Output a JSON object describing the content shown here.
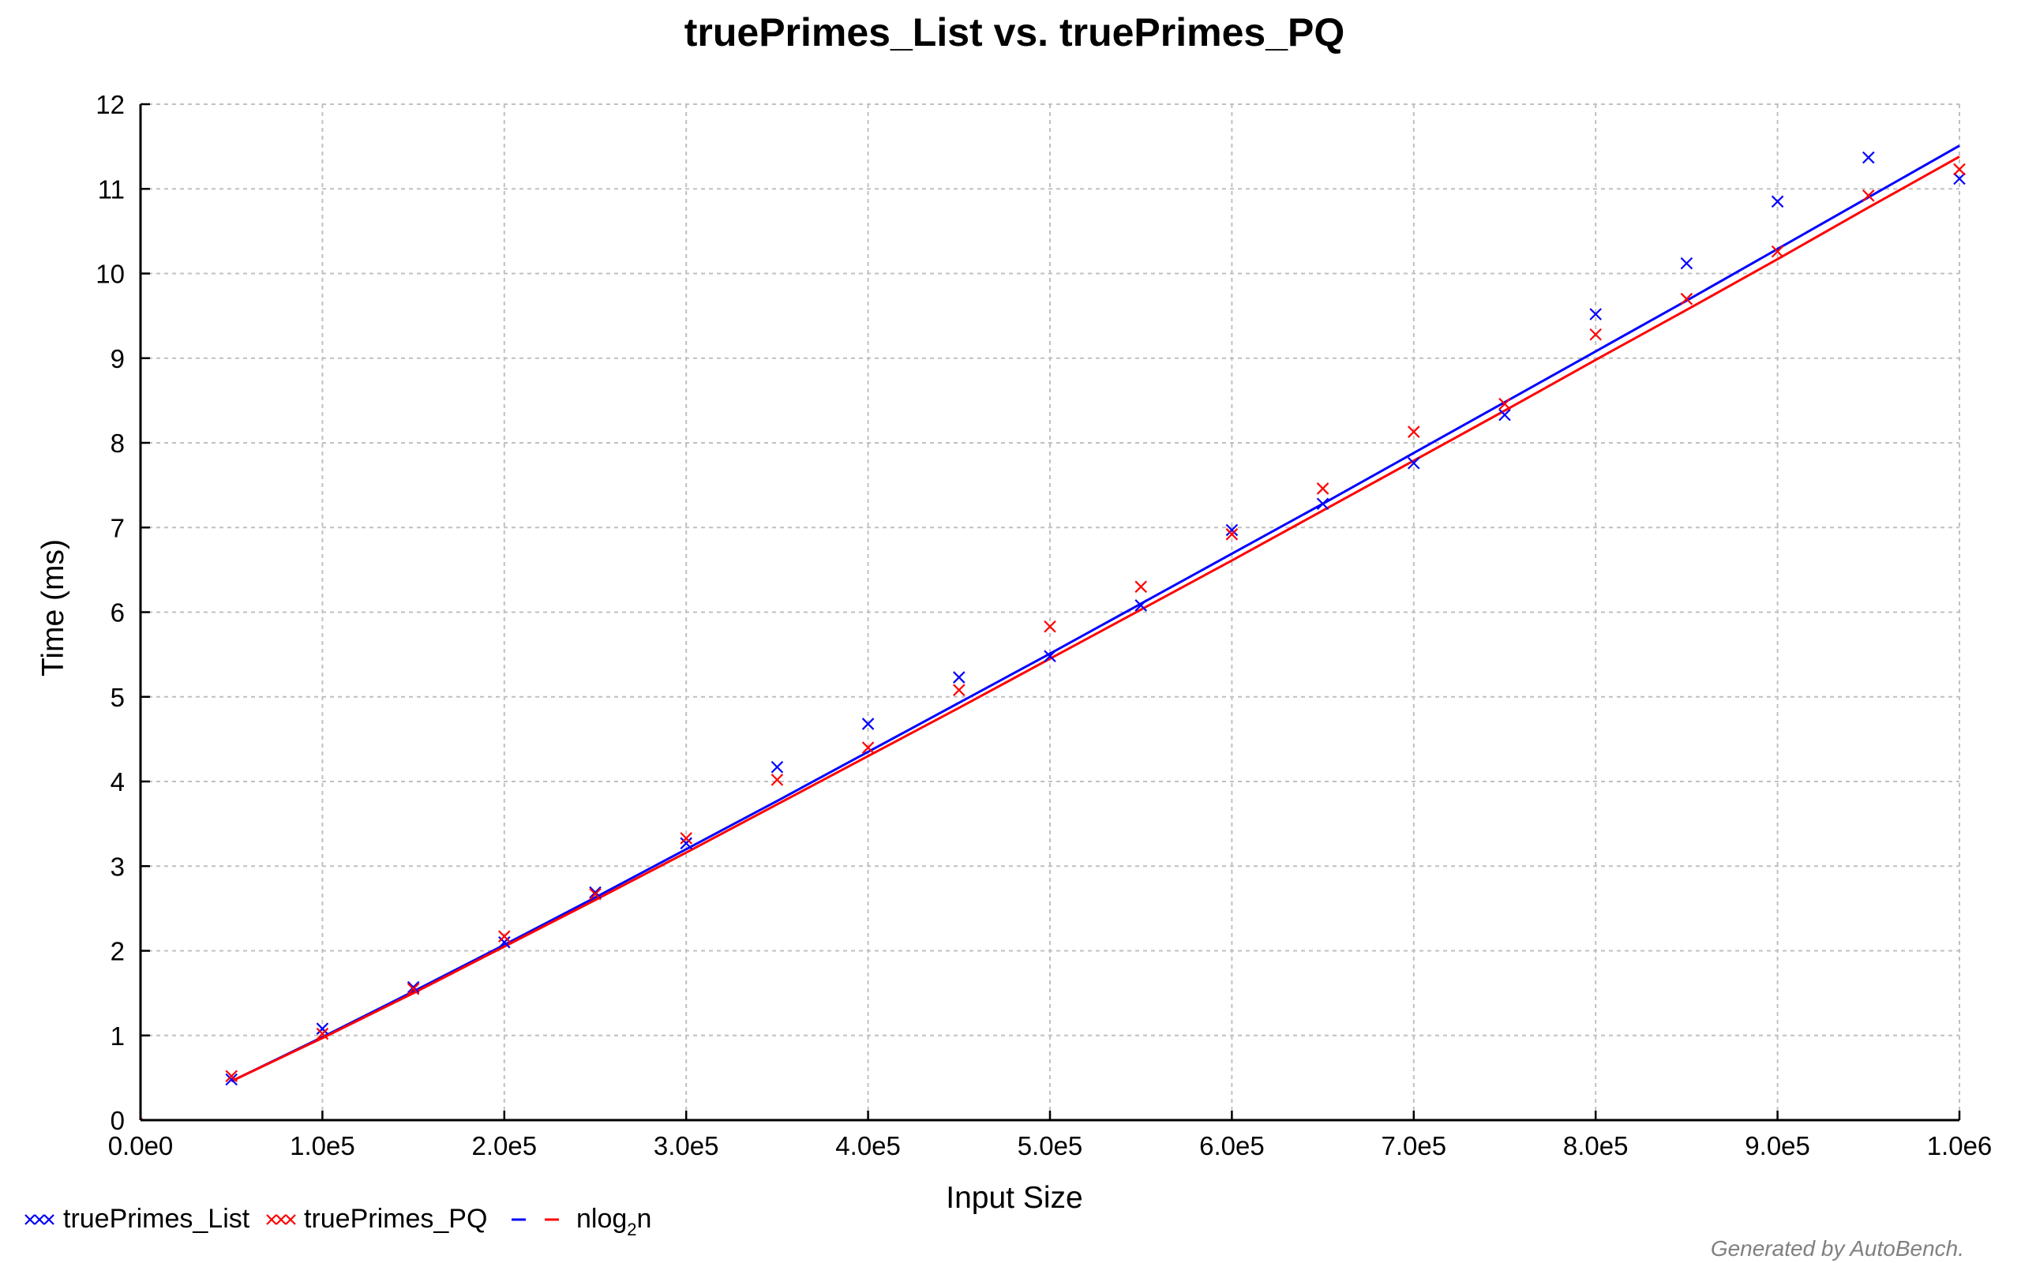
{
  "chart_data": {
    "type": "scatter",
    "title": "truePrimes_List vs. truePrimes_PQ",
    "xlabel": "Input Size",
    "ylabel": "Time (ms)",
    "xlim": [
      0,
      1000000
    ],
    "ylim": [
      0,
      12
    ],
    "grid": true,
    "x_ticks": [
      0,
      100000,
      200000,
      300000,
      400000,
      500000,
      600000,
      700000,
      800000,
      900000,
      1000000
    ],
    "x_tick_labels": [
      "0.0e0",
      "1.0e5",
      "2.0e5",
      "3.0e5",
      "4.0e5",
      "5.0e5",
      "6.0e5",
      "7.0e5",
      "8.0e5",
      "9.0e5",
      "1.0e6"
    ],
    "y_ticks": [
      0,
      1,
      2,
      3,
      4,
      5,
      6,
      7,
      8,
      9,
      10,
      11,
      12
    ],
    "y_tick_labels": [
      "0",
      "1",
      "2",
      "3",
      "4",
      "5",
      "6",
      "7",
      "8",
      "9",
      "10",
      "11",
      "12"
    ],
    "x": [
      50000,
      100000,
      150000,
      200000,
      250000,
      300000,
      350000,
      400000,
      450000,
      500000,
      550000,
      600000,
      650000,
      700000,
      750000,
      800000,
      850000,
      900000,
      950000,
      1000000
    ],
    "series": [
      {
        "name": "truePrimes_List",
        "color": "#0000ff",
        "marker": "x",
        "values": [
          0.48,
          1.08,
          1.57,
          2.1,
          2.69,
          3.27,
          4.17,
          4.68,
          5.23,
          5.48,
          6.08,
          6.97,
          7.28,
          7.76,
          8.33,
          9.52,
          10.12,
          10.85,
          11.37,
          11.12
        ]
      },
      {
        "name": "truePrimes_PQ",
        "color": "#ff0000",
        "marker": "x",
        "values": [
          0.52,
          1.02,
          1.55,
          2.17,
          2.67,
          3.33,
          4.02,
          4.4,
          5.08,
          5.83,
          6.3,
          6.92,
          7.46,
          8.13,
          8.46,
          9.28,
          9.7,
          10.26,
          10.92,
          11.23
        ]
      }
    ],
    "fits": [
      {
        "label": "nlog₂n",
        "color": "#0000ff",
        "fitted_values": [
          0.46,
          0.98,
          1.52,
          2.07,
          2.63,
          3.2,
          3.77,
          4.35,
          4.93,
          5.51,
          6.1,
          6.69,
          7.28,
          7.88,
          8.48,
          9.08,
          9.68,
          10.29,
          10.9,
          11.51
        ]
      },
      {
        "label": "nlog₂n",
        "color": "#ff0000",
        "fitted_values": [
          0.46,
          0.97,
          1.5,
          2.05,
          2.6,
          3.16,
          3.73,
          4.3,
          4.87,
          5.45,
          6.03,
          6.61,
          7.2,
          7.79,
          8.38,
          8.98,
          9.57,
          10.17,
          10.78,
          11.38
        ]
      }
    ],
    "legend": {
      "position": "bottom-left",
      "entries": [
        "truePrimes_List",
        "truePrimes_PQ"
      ],
      "fit_label_base": "nlog",
      "fit_label_sub": "2",
      "fit_label_tail": "n"
    },
    "footer": "Generated by AutoBench."
  }
}
